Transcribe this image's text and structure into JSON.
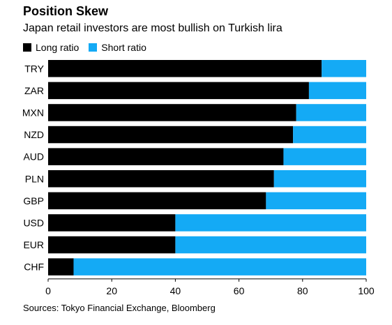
{
  "header": {
    "title": "Position Skew",
    "subtitle": "Japan retail investors are most bullish on Turkish lira"
  },
  "legend": {
    "long_label": "Long ratio",
    "short_label": "Short ratio"
  },
  "colors": {
    "long": "#000000",
    "short": "#14aaf5",
    "axis": "#000000"
  },
  "source": "Sources: Tokyo Financial Exchange, Bloomberg",
  "chart_data": {
    "type": "bar",
    "orientation": "horizontal",
    "stacked": true,
    "title": "Position Skew",
    "subtitle": "Japan retail investors are most bullish on Turkish lira",
    "categories": [
      "TRY",
      "ZAR",
      "MXN",
      "NZD",
      "AUD",
      "PLN",
      "GBP",
      "USD",
      "EUR",
      "CHF"
    ],
    "series": [
      {
        "name": "Long ratio",
        "values": [
          86,
          82,
          78,
          77,
          74,
          71,
          68.5,
          40,
          40,
          8
        ]
      },
      {
        "name": "Short ratio",
        "values": [
          14,
          18,
          22,
          23,
          26,
          29,
          31.5,
          60,
          60,
          92
        ]
      }
    ],
    "xlim": [
      0,
      100
    ],
    "xticks": [
      0,
      20,
      40,
      60,
      80,
      100
    ],
    "xlabel": "",
    "ylabel": "",
    "grid": false,
    "legend_position": "top-left"
  }
}
